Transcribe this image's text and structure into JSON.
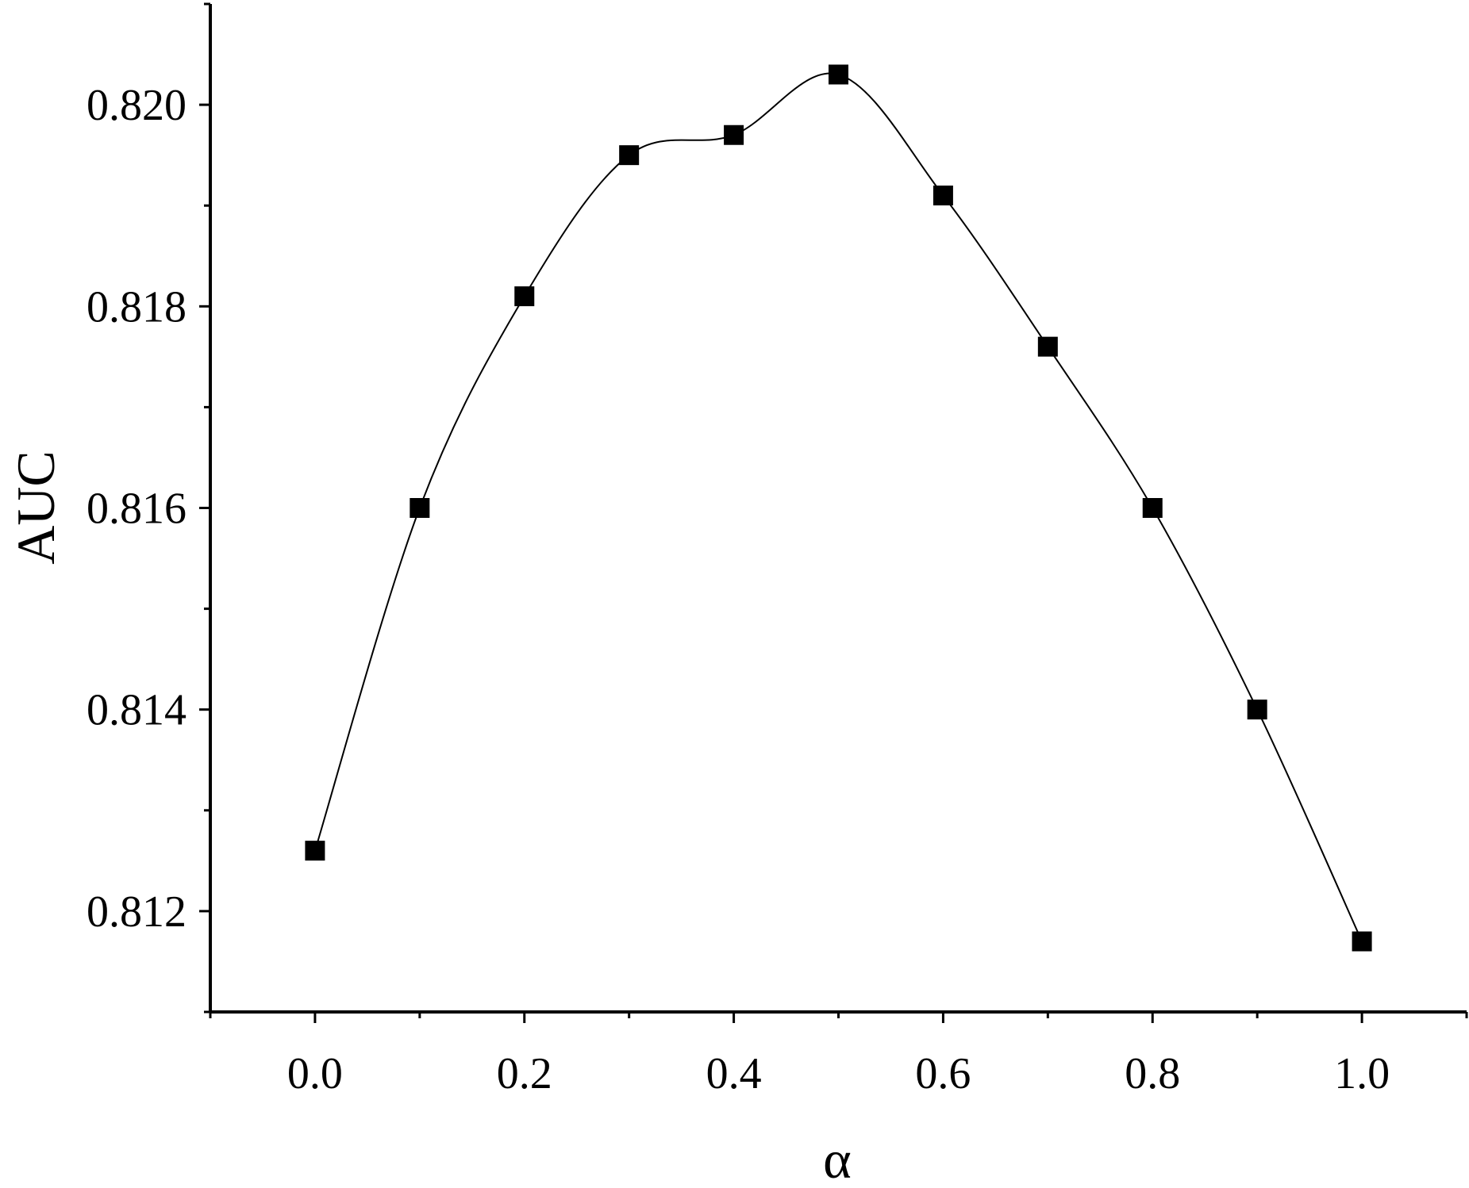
{
  "chart_data": {
    "type": "line",
    "xlabel": "α",
    "ylabel": "AUC",
    "xlim": [
      -0.1,
      1.1
    ],
    "ylim": [
      0.811,
      0.821
    ],
    "x_ticks": [
      "0.0",
      "0.2",
      "0.4",
      "0.6",
      "0.8",
      "1.0"
    ],
    "y_ticks": [
      "0.812",
      "0.814",
      "0.816",
      "0.818",
      "0.820"
    ],
    "grid": false,
    "legend": false,
    "marker": "square",
    "line_style": "smooth",
    "colors": {
      "line": "#000000",
      "marker": "#000000",
      "axis": "#000000"
    },
    "series": [
      {
        "x": [
          0.0,
          0.1,
          0.2,
          0.3,
          0.4,
          0.5,
          0.6,
          0.7,
          0.8,
          0.9,
          1.0
        ],
        "values": [
          0.8126,
          0.816,
          0.8181,
          0.8195,
          0.8197,
          0.8203,
          0.8191,
          0.8176,
          0.816,
          0.814,
          0.8117
        ]
      }
    ]
  }
}
